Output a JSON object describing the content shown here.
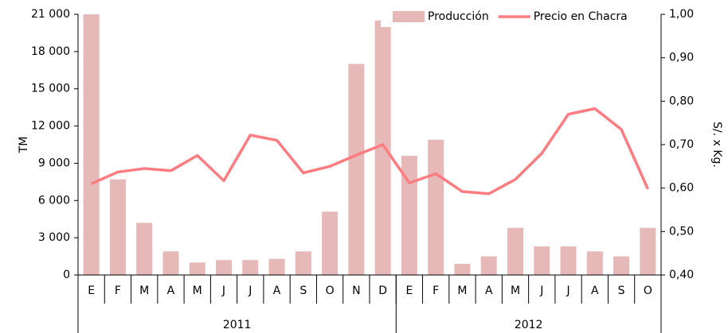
{
  "chart_data": {
    "type": "bar_line",
    "categories": [
      "E",
      "F",
      "M",
      "A",
      "M",
      "J",
      "J",
      "A",
      "S",
      "O",
      "N",
      "D",
      "E",
      "F",
      "M",
      "A",
      "M",
      "J",
      "J",
      "A",
      "S",
      "O"
    ],
    "groups": [
      {
        "label": "2011",
        "count": 12
      },
      {
        "label": "2012",
        "count": 10
      }
    ],
    "series": [
      {
        "name": "Producción",
        "color": "#e6b8b7",
        "type": "bar",
        "values": [
          21000,
          7700,
          4200,
          1900,
          1000,
          1200,
          1200,
          1300,
          1900,
          5100,
          17000,
          20500,
          9600,
          10900,
          900,
          1500,
          3800,
          2300,
          2300,
          1900,
          1500,
          3800
        ]
      },
      {
        "name": "Precio en Chacra",
        "color": "#ff7c80",
        "type": "line",
        "axis": "y2",
        "values": [
          0.61,
          0.637,
          0.645,
          0.64,
          0.675,
          0.617,
          0.722,
          0.71,
          0.635,
          0.65,
          0.676,
          0.7,
          0.612,
          0.633,
          0.592,
          0.587,
          0.62,
          0.68,
          0.77,
          0.783,
          0.735,
          0.598
        ]
      }
    ],
    "ylabel": "TM",
    "y2label": "S/. x Kg.",
    "ylim": [
      0,
      21000
    ],
    "yticks": [
      0,
      {
        "value": 3000,
        "label": "3 000"
      },
      {
        "value": 6000,
        "label": "6 000"
      },
      {
        "value": 9000,
        "label": "9 000"
      },
      {
        "value": 12000,
        "label": "12 000"
      },
      {
        "value": 15000,
        "label": "15 000"
      },
      {
        "value": 18000,
        "label": "18 000"
      },
      {
        "value": 21000,
        "label": "21 000"
      }
    ],
    "y2lim": [
      0.4,
      1.0
    ],
    "y2ticks": [
      {
        "value": 0.4,
        "label": "0,40"
      },
      {
        "value": 0.5,
        "label": "0,50"
      },
      {
        "value": 0.6,
        "label": "0,60"
      },
      {
        "value": 0.7,
        "label": "0,70"
      },
      {
        "value": 0.8,
        "label": "0,80"
      },
      {
        "value": 0.9,
        "label": "0,90"
      },
      {
        "value": 1.0,
        "label": "1,00"
      }
    ],
    "legend": "top-right"
  }
}
